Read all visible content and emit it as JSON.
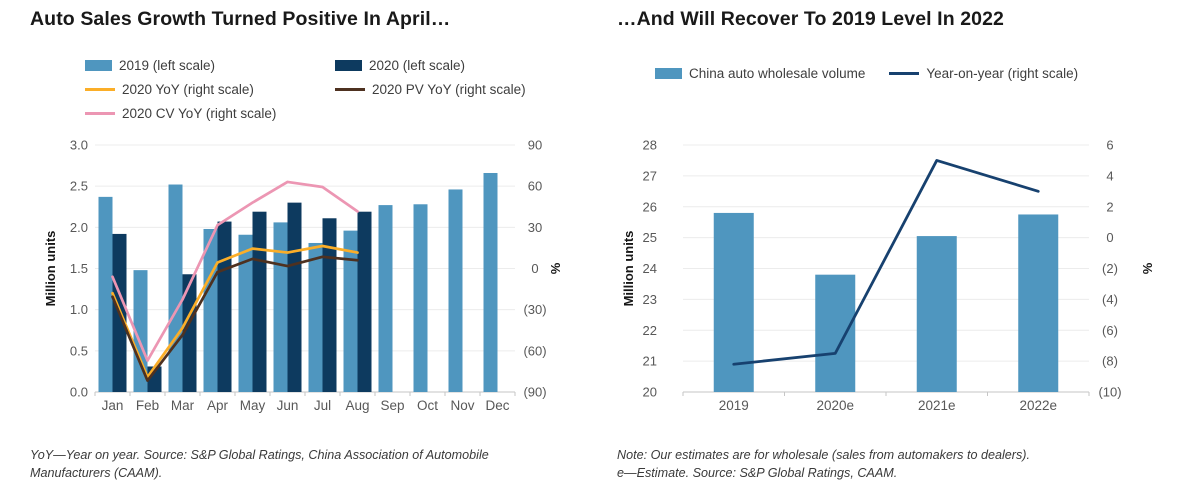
{
  "chart_data": [
    {
      "type": "combo-bar-line",
      "title": "Auto Sales Growth Turned Positive In April…",
      "categories": [
        "Jan",
        "Feb",
        "Mar",
        "Apr",
        "May",
        "Jun",
        "Jul",
        "Aug",
        "Sep",
        "Oct",
        "Nov",
        "Dec"
      ],
      "left_axis": {
        "label": "Million units",
        "min": 0,
        "max": 3,
        "step": 0.5,
        "tick_labels": [
          "0.0",
          "0.5",
          "1.0",
          "1.5",
          "2.0",
          "2.5",
          "3.0"
        ]
      },
      "right_axis": {
        "label": "%",
        "min": -90,
        "max": 90,
        "step": 30,
        "tick_labels": [
          "(90)",
          "(60)",
          "(30)",
          "0",
          "30",
          "60",
          "90"
        ]
      },
      "grid": true,
      "series": [
        {
          "name": "2019 (left scale)",
          "type": "bar",
          "axis": "left",
          "color": "#4f96bf",
          "values": [
            2.37,
            1.48,
            2.52,
            1.98,
            1.91,
            2.06,
            1.81,
            1.96,
            2.27,
            2.28,
            2.46,
            2.66
          ]
        },
        {
          "name": "2020 (left scale)",
          "type": "bar",
          "axis": "left",
          "color": "#0d3a5f",
          "values": [
            1.92,
            0.31,
            1.43,
            2.07,
            2.19,
            2.3,
            2.11,
            2.19,
            null,
            null,
            null,
            null
          ]
        },
        {
          "name": "2020 YoY (right scale)",
          "type": "line",
          "axis": "right",
          "color": "#fbae28",
          "values": [
            -18.0,
            -79.1,
            -43.3,
            4.4,
            14.5,
            11.6,
            16.4,
            11.6,
            null,
            null,
            null,
            null
          ]
        },
        {
          "name": "2020 PV YoY (right scale)",
          "type": "line",
          "axis": "right",
          "color": "#4e3120",
          "values": [
            -20.6,
            -81.7,
            -48.4,
            -2.6,
            7.0,
            1.8,
            8.5,
            6.0,
            null,
            null,
            null,
            null
          ]
        },
        {
          "name": "2020 CV YoY (right scale)",
          "type": "line",
          "axis": "right",
          "color": "#ec96b3",
          "values": [
            -6.0,
            -67.1,
            -22.6,
            31.6,
            48.0,
            63.1,
            59.4,
            41.6,
            null,
            null,
            null,
            null
          ]
        }
      ],
      "footnote": [
        "YoY—Year on year. Source: S&P Global Ratings, China Association of Automobile",
        "Manufacturers (CAAM)."
      ]
    },
    {
      "type": "combo-bar-line",
      "title": "…And Will Recover To 2019 Level In 2022",
      "categories": [
        "2019",
        "2020e",
        "2021e",
        "2022e"
      ],
      "left_axis": {
        "label": "Million units",
        "min": 20,
        "max": 28,
        "step": 1,
        "tick_labels": [
          "20",
          "21",
          "22",
          "23",
          "24",
          "25",
          "26",
          "27",
          "28"
        ]
      },
      "right_axis": {
        "label": "%",
        "min": -10,
        "max": 6,
        "step": 2,
        "tick_labels": [
          "(10)",
          "(8)",
          "(6)",
          "(4)",
          "(2)",
          "0",
          "2",
          "4",
          "6"
        ]
      },
      "grid": true,
      "series": [
        {
          "name": "China auto wholesale volume",
          "type": "bar",
          "axis": "left",
          "color": "#4f96bf",
          "values": [
            25.8,
            23.8,
            25.05,
            25.75
          ]
        },
        {
          "name": "Year-on-year (right scale)",
          "type": "line",
          "axis": "right",
          "color": "#17416f",
          "values": [
            -8.2,
            -7.5,
            5.0,
            3.0
          ]
        }
      ],
      "footnote": [
        "Note: Our estimates are for wholesale (sales from automakers to dealers).",
        "e—Estimate. Source: S&P Global Ratings, CAAM."
      ]
    }
  ]
}
